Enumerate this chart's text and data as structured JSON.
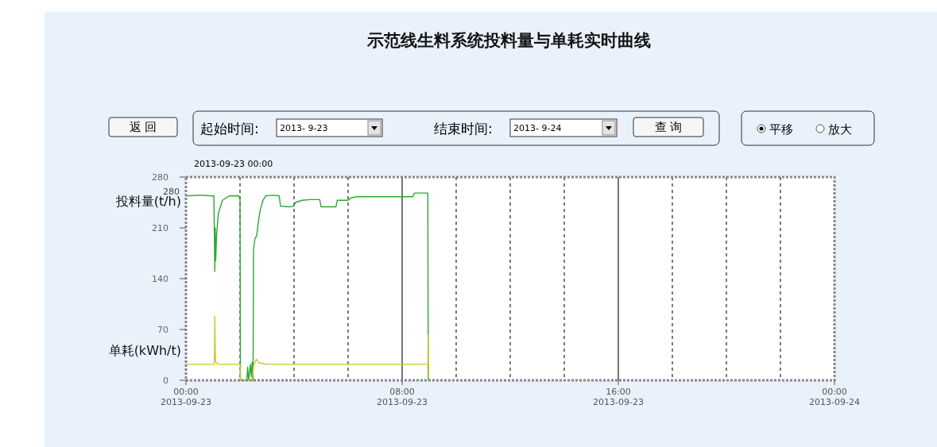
{
  "chart_data": {
    "type": "line",
    "title": "示范线生料系统投料量与单耗实时曲线",
    "annotations": [
      "返 回",
      "起始时间:",
      "2013- 9-23",
      "结束时间:",
      "2013- 9-24",
      "查 询",
      "平移",
      "放大",
      "2013-09-23 00:00",
      "280"
    ],
    "xlim": [
      "2013-09-23T00:00",
      "2013-09-24T00:00"
    ],
    "xticks": [
      {
        "value": "2013-09-23T00:00",
        "label": "00:00 2013-09-23"
      },
      {
        "value": "2013-09-23T02:00",
        "label": null
      },
      {
        "value": "2013-09-23T04:00",
        "label": null
      },
      {
        "value": "2013-09-23T06:00",
        "label": null
      },
      {
        "value": "2013-09-23T08:00",
        "label": "08:00 2013-09-23"
      },
      {
        "value": "2013-09-23T10:00",
        "label": null
      },
      {
        "value": "2013-09-23T12:00",
        "label": null
      },
      {
        "value": "2013-09-23T14:00",
        "label": null
      },
      {
        "value": "2013-09-23T16:00",
        "label": "16:00 2013-09-23"
      },
      {
        "value": "2013-09-23T18:00",
        "label": null
      },
      {
        "value": "2013-09-23T20:00",
        "label": null
      },
      {
        "value": "2013-09-23T22:00",
        "label": null
      },
      {
        "value": "2013-09-24T00:00",
        "label": "00:00 2013-09-24"
      }
    ],
    "ylim": [
      0,
      280
    ],
    "yticks": [
      0,
      70,
      140,
      210,
      280
    ],
    "grid": "x",
    "line_style": "solid",
    "series": [
      {
        "name": "投料量(t/h)",
        "color": "#2ea82e",
        "x": [
          "2013-09-23T00:00",
          "2013-09-23T00:30",
          "2013-09-23T01:00",
          "2013-09-23T01:02",
          "2013-09-23T01:04",
          "2013-09-23T01:05",
          "2013-09-23T01:06",
          "2013-09-23T01:08",
          "2013-09-23T01:12",
          "2013-09-23T01:21",
          "2013-09-23T01:36",
          "2013-09-23T01:57",
          "2013-09-23T02:00",
          "2013-09-23T02:01",
          "2013-09-23T02:15",
          "2013-09-23T02:17",
          "2013-09-23T02:19",
          "2013-09-23T02:23",
          "2013-09-23T02:25",
          "2013-09-23T02:27",
          "2013-09-23T02:29",
          "2013-09-23T02:30",
          "2013-09-23T02:33",
          "2013-09-23T02:37",
          "2013-09-23T02:41",
          "2013-09-23T02:45",
          "2013-09-23T02:51",
          "2013-09-23T02:57",
          "2013-09-23T03:12",
          "2013-09-23T03:27",
          "2013-09-23T03:30",
          "2013-09-23T03:48",
          "2013-09-23T04:00",
          "2013-09-23T04:03",
          "2013-09-23T04:18",
          "2013-09-23T04:36",
          "2013-09-23T04:57",
          "2013-09-23T05:00",
          "2013-09-23T05:33",
          "2013-09-23T05:36",
          "2013-09-23T06:00",
          "2013-09-23T06:06",
          "2013-09-23T06:18",
          "2013-09-23T07:00",
          "2013-09-23T08:00",
          "2013-09-23T08:24",
          "2013-09-23T08:27",
          "2013-09-23T08:57",
          "2013-09-23T08:58"
        ],
        "values": [
          254,
          255,
          254,
          254,
          150,
          210,
          165,
          200,
          230,
          248,
          254,
          254,
          250,
          0,
          0,
          18,
          0,
          22,
          5,
          25,
          0,
          180,
          195,
          199,
          220,
          235,
          248,
          254,
          255,
          254,
          240,
          239,
          240,
          245,
          248,
          249,
          249,
          239,
          239,
          248,
          248,
          251,
          253,
          253,
          253,
          253,
          258,
          258,
          0
        ]
      },
      {
        "name": "单耗(kWh/t)",
        "color": "#c8c832",
        "x": [
          "2013-09-23T00:00",
          "2013-09-23T01:00",
          "2013-09-23T01:03",
          "2013-09-23T01:04",
          "2013-09-23T01:05",
          "2013-09-23T01:06",
          "2013-09-23T01:12",
          "2013-09-23T01:57",
          "2013-09-23T02:00",
          "2013-09-23T02:01",
          "2013-09-23T02:27",
          "2013-09-23T02:30",
          "2013-09-23T02:36",
          "2013-09-23T02:42",
          "2013-09-23T03:00",
          "2013-09-23T08:57",
          "2013-09-23T08:58",
          "2013-09-23T08:59"
        ],
        "values": [
          22,
          22,
          22,
          88,
          40,
          25,
          22,
          22,
          22,
          0,
          0,
          20,
          29,
          24,
          22,
          22,
          62,
          0
        ]
      }
    ]
  }
}
